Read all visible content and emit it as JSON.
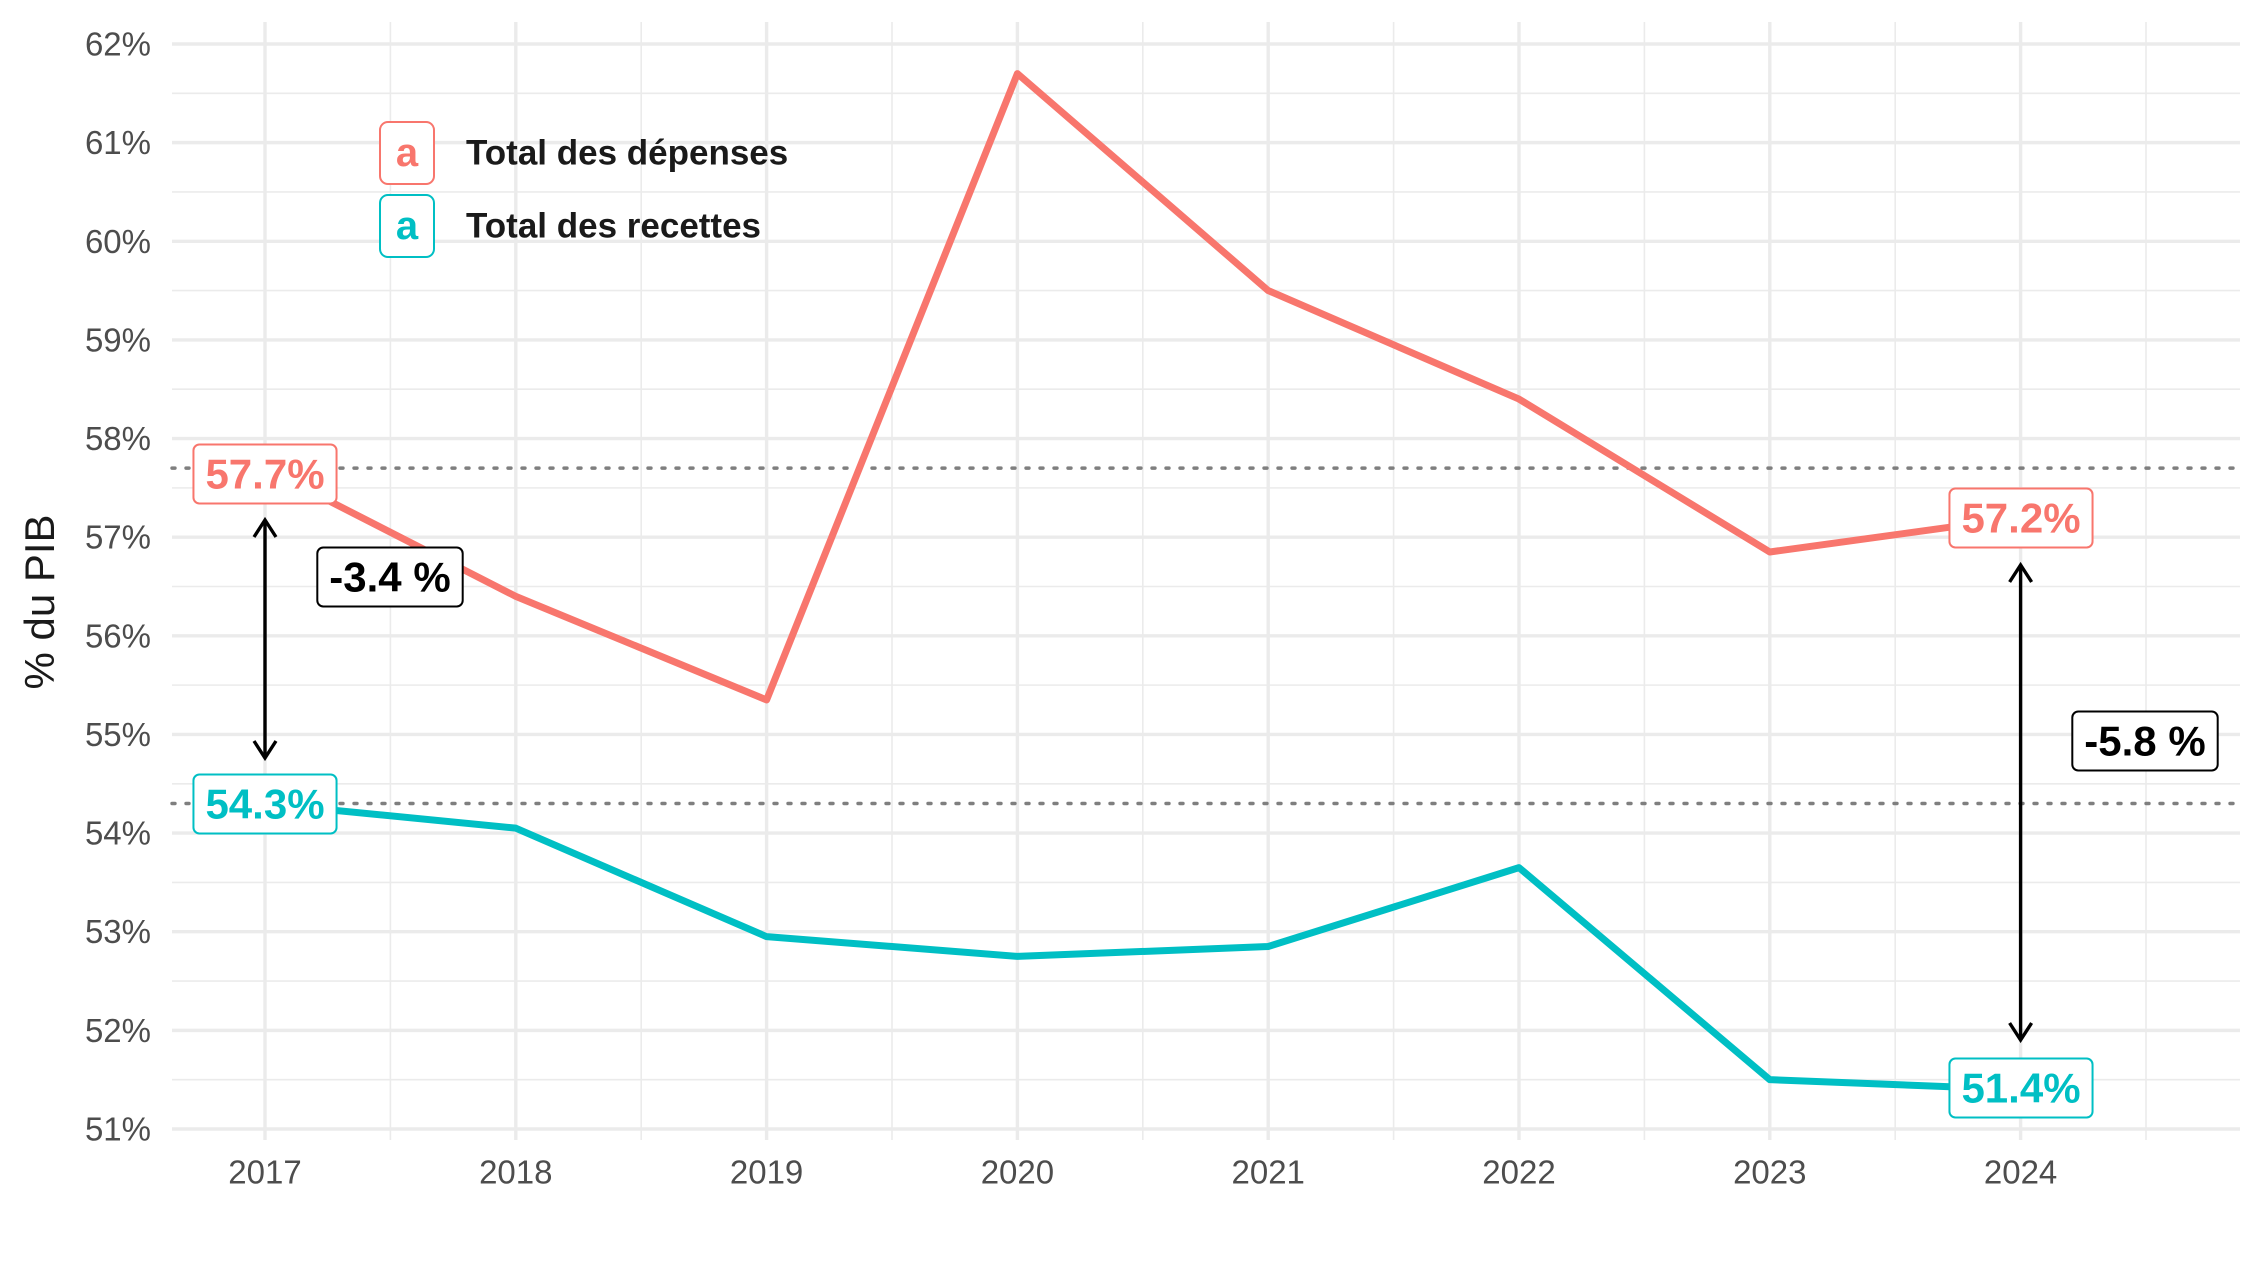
{
  "colors": {
    "depenses": "#F8766D",
    "recettes": "#00BFC4",
    "grid": "#EBEBEB",
    "reference": "#7F7F7F",
    "arrow": "#000000"
  },
  "chart_data": {
    "type": "line",
    "x": [
      2017,
      2018,
      2019,
      2020,
      2021,
      2022,
      2023,
      2024
    ],
    "x_tick_labels": [
      "2017",
      "2018",
      "2019",
      "2020",
      "2021",
      "2022",
      "2023",
      "2024"
    ],
    "series": [
      {
        "name": "Total des dépenses",
        "color": "#F8766D",
        "values": [
          57.7,
          56.4,
          55.35,
          61.7,
          59.5,
          58.4,
          56.85,
          57.2
        ]
      },
      {
        "name": "Total des recettes",
        "color": "#00BFC4",
        "values": [
          54.3,
          54.05,
          52.95,
          52.75,
          52.85,
          53.65,
          51.5,
          51.4
        ]
      }
    ],
    "ylabel": "% du PIB",
    "ylim": [
      51,
      62
    ],
    "y_ticks": [
      51,
      52,
      53,
      54,
      55,
      56,
      57,
      58,
      59,
      60,
      61,
      62
    ],
    "y_tick_labels": [
      "51%",
      "52%",
      "53%",
      "54%",
      "55%",
      "56%",
      "57%",
      "58%",
      "59%",
      "60%",
      "61%",
      "62%"
    ],
    "grid": true,
    "legend_placement": "top-left",
    "legend_key_glyph": "a",
    "reference_lines": [
      57.7,
      54.3
    ],
    "end_labels": [
      {
        "series": 0,
        "x": 2017,
        "y": 57.7,
        "text": "57.7%"
      },
      {
        "series": 1,
        "x": 2017,
        "y": 54.3,
        "text": "54.3%"
      },
      {
        "series": 0,
        "x": 2024,
        "y": 57.2,
        "text": "57.2%"
      },
      {
        "series": 1,
        "x": 2024,
        "y": 51.4,
        "text": "51.4%"
      }
    ],
    "difference_annotations": [
      {
        "x": 2017,
        "from": 57.7,
        "to": 54.3,
        "text": "-3.4 %"
      },
      {
        "x": 2024,
        "from": 57.2,
        "to": 51.4,
        "text": "-5.8 %"
      }
    ]
  }
}
